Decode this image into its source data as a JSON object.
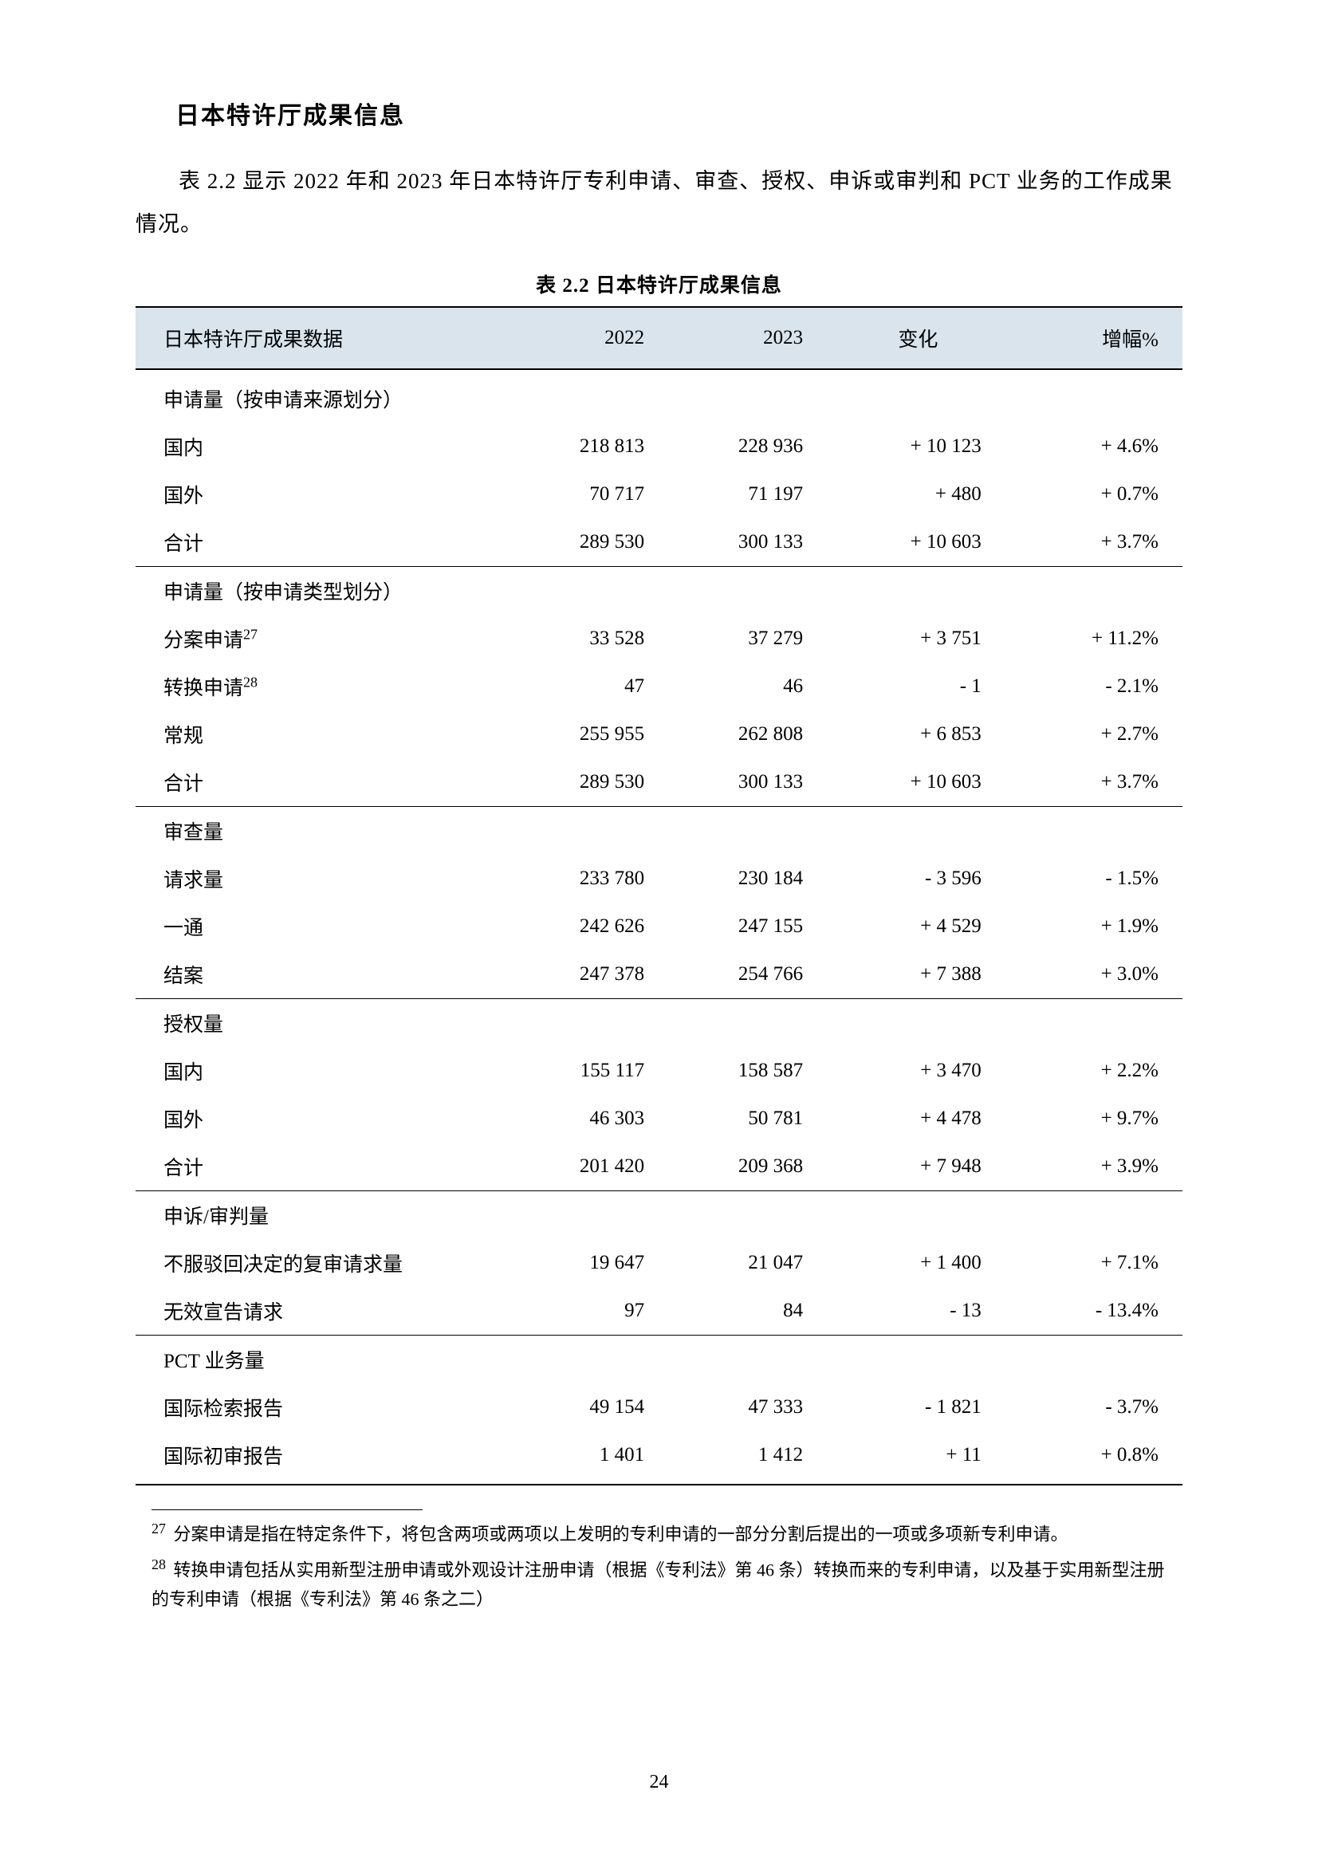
{
  "sectionTitle": "日本特许厅成果信息",
  "introText": "表 2.2 显示 2022 年和 2023 年日本特许厅专利申请、审查、授权、申诉或审判和 PCT 业务的工作成果情况。",
  "tableCaption": "表 2.2 日本特许厅成果信息",
  "headers": {
    "label": "日本特许厅成果数据",
    "y2022": "2022",
    "y2023": "2023",
    "change": "变化",
    "pct": "增幅%"
  },
  "sections": [
    {
      "title": "申请量（按申请来源划分）",
      "rows": [
        {
          "label": "国内",
          "y2022": "218 813",
          "y2023": "228 936",
          "change": "+ 10 123",
          "pct": "+ 4.6%"
        },
        {
          "label": "国外",
          "y2022": "70 717",
          "y2023": "71 197",
          "change": "+ 480",
          "pct": "+ 0.7%"
        },
        {
          "label": "合计",
          "y2022": "289 530",
          "y2023": "300 133",
          "change": "+ 10 603",
          "pct": "+ 3.7%"
        }
      ]
    },
    {
      "title": "申请量（按申请类型划分）",
      "rows": [
        {
          "label": "分案申请",
          "sup": "27",
          "y2022": "33 528",
          "y2023": "37 279",
          "change": "+ 3 751",
          "pct": "+ 11.2%"
        },
        {
          "label": "转换申请",
          "sup": "28",
          "y2022": "47",
          "y2023": "46",
          "change": "- 1",
          "pct": "- 2.1%"
        },
        {
          "label": "常规",
          "y2022": "255 955",
          "y2023": "262 808",
          "change": "+ 6 853",
          "pct": "+ 2.7%"
        },
        {
          "label": "合计",
          "y2022": "289 530",
          "y2023": "300 133",
          "change": "+ 10 603",
          "pct": "+ 3.7%"
        }
      ]
    },
    {
      "title": "审查量",
      "rows": [
        {
          "label": "请求量",
          "y2022": "233 780",
          "y2023": "230 184",
          "change": "- 3 596",
          "pct": "- 1.5%"
        },
        {
          "label": "一通",
          "y2022": "242 626",
          "y2023": "247 155",
          "change": "+ 4 529",
          "pct": "+ 1.9%"
        },
        {
          "label": "结案",
          "y2022": "247 378",
          "y2023": "254 766",
          "change": "+ 7 388",
          "pct": "+ 3.0%"
        }
      ]
    },
    {
      "title": "授权量",
      "rows": [
        {
          "label": "国内",
          "y2022": "155 117",
          "y2023": "158 587",
          "change": "+ 3 470",
          "pct": "+ 2.2%"
        },
        {
          "label": "国外",
          "y2022": "46 303",
          "y2023": "50 781",
          "change": "+ 4 478",
          "pct": "+ 9.7%"
        },
        {
          "label": "合计",
          "y2022": "201 420",
          "y2023": "209 368",
          "change": "+ 7 948",
          "pct": "+ 3.9%"
        }
      ]
    },
    {
      "title": "申诉/审判量",
      "rows": [
        {
          "label": "不服驳回决定的复审请求量",
          "y2022": "19 647",
          "y2023": "21 047",
          "change": "+ 1 400",
          "pct": "+ 7.1%"
        },
        {
          "label": "无效宣告请求",
          "y2022": "97",
          "y2023": "84",
          "change": "- 13",
          "pct": "- 13.4%"
        }
      ]
    },
    {
      "title": "PCT 业务量",
      "rows": [
        {
          "label": "国际检索报告",
          "y2022": "49 154",
          "y2023": "47 333",
          "change": "- 1 821",
          "pct": "- 3.7%"
        },
        {
          "label": "国际初审报告",
          "y2022": "1 401",
          "y2023": "1 412",
          "change": "+ 11",
          "pct": "+ 0.8%"
        }
      ]
    }
  ],
  "footnotes": [
    {
      "num": "27",
      "text": "分案申请是指在特定条件下，将包含两项或两项以上发明的专利申请的一部分分割后提出的一项或多项新专利申请。"
    },
    {
      "num": "28",
      "text": "转换申请包括从实用新型注册申请或外观设计注册申请（根据《专利法》第 46 条）转换而来的专利申请，以及基于实用新型注册的专利申请（根据《专利法》第 46 条之二）"
    }
  ],
  "pageNumber": "24"
}
